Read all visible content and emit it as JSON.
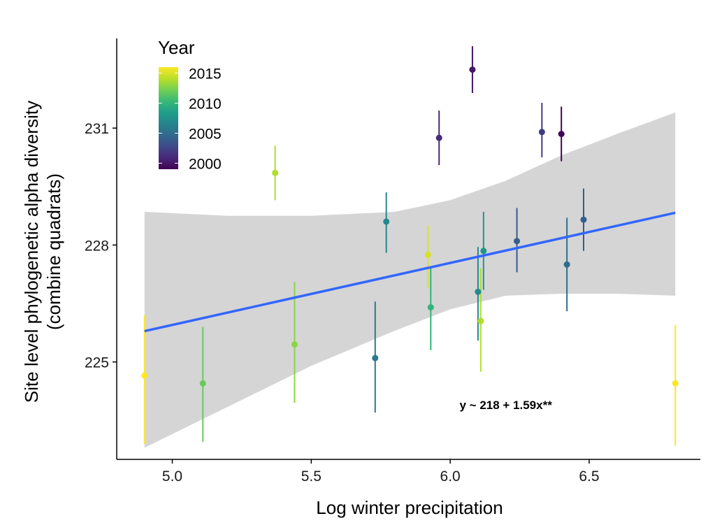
{
  "chart_data": {
    "type": "scatter",
    "xlabel": "Log winter precipitation",
    "ylabel_lines": [
      "Site level phylogenetic alpha diversity",
      "(combine quadrats)"
    ],
    "xlim": [
      4.8,
      6.9
    ],
    "ylim": [
      222.5,
      233.3
    ],
    "x_ticks": [
      5.0,
      5.5,
      6.0,
      6.5
    ],
    "x_tick_labels": [
      "5.0",
      "5.5",
      "6.0",
      "6.5"
    ],
    "y_ticks": [
      225,
      228,
      231
    ],
    "y_tick_labels": [
      "225",
      "228",
      "231"
    ],
    "grid": false,
    "legend": {
      "title": "Year",
      "position": "top-left",
      "type": "colorbar",
      "range": [
        1999,
        2016
      ],
      "ticks": [
        2000,
        2005,
        2010,
        2015
      ],
      "tick_labels": [
        "2000",
        "2005",
        "2010",
        "2015"
      ],
      "palette": [
        "#440154",
        "#482878",
        "#3e4989",
        "#31688e",
        "#26828e",
        "#1f9e89",
        "#35b779",
        "#6ece58",
        "#b5de2b",
        "#fde725"
      ]
    },
    "points": [
      {
        "x": 4.9,
        "y": 224.65,
        "ymin": 222.9,
        "ymax": 226.2,
        "year": 2016
      },
      {
        "x": 5.11,
        "y": 224.45,
        "ymin": 222.95,
        "ymax": 225.9,
        "year": 2012
      },
      {
        "x": 5.37,
        "y": 229.85,
        "ymin": 229.15,
        "ymax": 230.55,
        "year": 2014
      },
      {
        "x": 5.44,
        "y": 225.45,
        "ymin": 223.95,
        "ymax": 227.05,
        "year": 2013
      },
      {
        "x": 5.73,
        "y": 225.1,
        "ymin": 223.7,
        "ymax": 226.55,
        "year": 2006
      },
      {
        "x": 5.77,
        "y": 228.6,
        "ymin": 227.8,
        "ymax": 229.35,
        "year": 2007
      },
      {
        "x": 5.92,
        "y": 227.75,
        "ymin": 226.9,
        "ymax": 228.5,
        "year": 2015
      },
      {
        "x": 5.93,
        "y": 226.4,
        "ymin": 225.3,
        "ymax": 227.45,
        "year": 2010
      },
      {
        "x": 5.96,
        "y": 230.75,
        "ymin": 230.05,
        "ymax": 231.45,
        "year": 2001
      },
      {
        "x": 6.08,
        "y": 232.5,
        "ymin": 231.9,
        "ymax": 233.1,
        "year": 2000
      },
      {
        "x": 6.1,
        "y": 226.8,
        "ymin": 225.55,
        "ymax": 227.95,
        "year": 2007
      },
      {
        "x": 6.11,
        "y": 226.05,
        "ymin": 224.75,
        "ymax": 227.4,
        "year": 2014
      },
      {
        "x": 6.12,
        "y": 227.85,
        "ymin": 226.85,
        "ymax": 228.85,
        "year": 2008
      },
      {
        "x": 6.24,
        "y": 228.1,
        "ymin": 227.3,
        "ymax": 228.95,
        "year": 2004
      },
      {
        "x": 6.33,
        "y": 230.9,
        "ymin": 230.25,
        "ymax": 231.65,
        "year": 2002
      },
      {
        "x": 6.4,
        "y": 230.85,
        "ymin": 230.15,
        "ymax": 231.55,
        "year": 1999
      },
      {
        "x": 6.42,
        "y": 227.5,
        "ymin": 226.3,
        "ymax": 228.7,
        "year": 2005
      },
      {
        "x": 6.48,
        "y": 228.65,
        "ymin": 227.85,
        "ymax": 229.45,
        "year": 2004
      },
      {
        "x": 6.81,
        "y": 224.45,
        "ymin": 222.85,
        "ymax": 225.95,
        "year": 2016
      }
    ],
    "trend": {
      "intercept": 218,
      "slope": 1.59,
      "x_range": [
        4.9,
        6.81
      ],
      "line_color": "#3366ff",
      "band_color": "#d3d3d3",
      "ci_lower": [
        [
          4.9,
          222.8
        ],
        [
          5.2,
          223.85
        ],
        [
          5.5,
          224.9
        ],
        [
          5.8,
          225.8
        ],
        [
          6.0,
          226.35
        ],
        [
          6.2,
          226.7
        ],
        [
          6.4,
          226.75
        ],
        [
          6.6,
          226.75
        ],
        [
          6.81,
          226.7
        ]
      ],
      "ci_upper": [
        [
          4.9,
          228.85
        ],
        [
          5.2,
          228.75
        ],
        [
          5.5,
          228.75
        ],
        [
          5.8,
          228.85
        ],
        [
          6.0,
          229.15
        ],
        [
          6.2,
          229.65
        ],
        [
          6.4,
          230.3
        ],
        [
          6.6,
          230.85
        ],
        [
          6.81,
          231.4
        ]
      ]
    },
    "annotation": {
      "text": "y ~ 218 + 1.59x**",
      "x": 6.2,
      "y": 223.9
    }
  }
}
